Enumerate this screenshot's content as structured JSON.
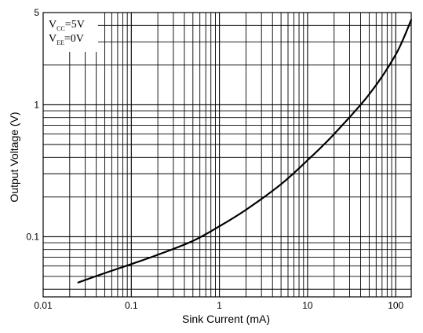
{
  "chart_data": {
    "type": "line",
    "title": "",
    "xlabel": "Sink Current (mA)",
    "ylabel": "Output Voltage (V)",
    "xscale": "log",
    "yscale": "log",
    "xlim": [
      0.01,
      150
    ],
    "ylim": [
      0.035,
      5
    ],
    "x_tick_labels": [
      "0.01",
      "0.1",
      "1",
      "10",
      "100"
    ],
    "y_tick_labels": [
      "0.1",
      "1",
      "5"
    ],
    "grid": true,
    "legend": "none",
    "annotation": {
      "vcc_main": "V",
      "vcc_sub": "CC",
      "vcc_value": "=5V",
      "vee_main": "V",
      "vee_sub": "EE",
      "vee_value": "=0V",
      "placement": "top-left"
    },
    "colors": {
      "line": "#000000",
      "grid": "#000000",
      "background": "#ffffff"
    },
    "series": [
      {
        "x": [
          0.025,
          0.05,
          0.1,
          0.2,
          0.5,
          1,
          2,
          5,
          10,
          20,
          50,
          100,
          150
        ],
        "y": [
          0.045,
          0.053,
          0.062,
          0.073,
          0.093,
          0.12,
          0.16,
          0.25,
          0.38,
          0.6,
          1.2,
          2.4,
          4.4
        ]
      }
    ]
  }
}
